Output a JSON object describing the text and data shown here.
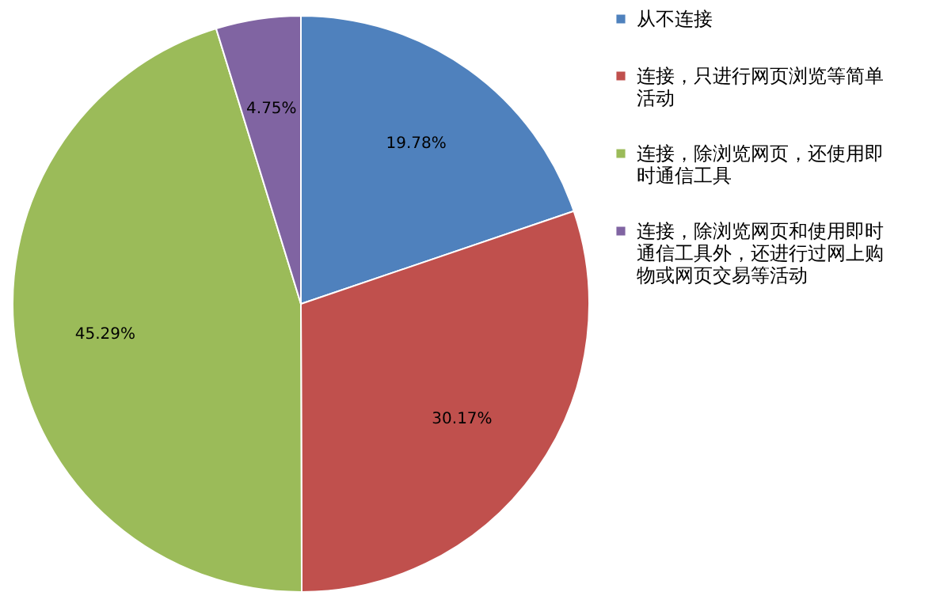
{
  "chart_data": {
    "type": "pie",
    "categories": [
      "从不连接",
      "连接，只进行网页浏览等简单活动",
      "连接，除浏览网页，还使用即时通信工具",
      "连接，除浏览网页和使用即时通信工具外，还进行过网上购物或网页交易等活动"
    ],
    "values": [
      19.78,
      30.17,
      45.29,
      4.75
    ],
    "value_labels": [
      "19.78%",
      "30.17%",
      "45.29%",
      "4.75%"
    ],
    "colors": [
      "#4f81bd",
      "#c0504d",
      "#9bbb59",
      "#8064a2"
    ],
    "legend": "right"
  }
}
